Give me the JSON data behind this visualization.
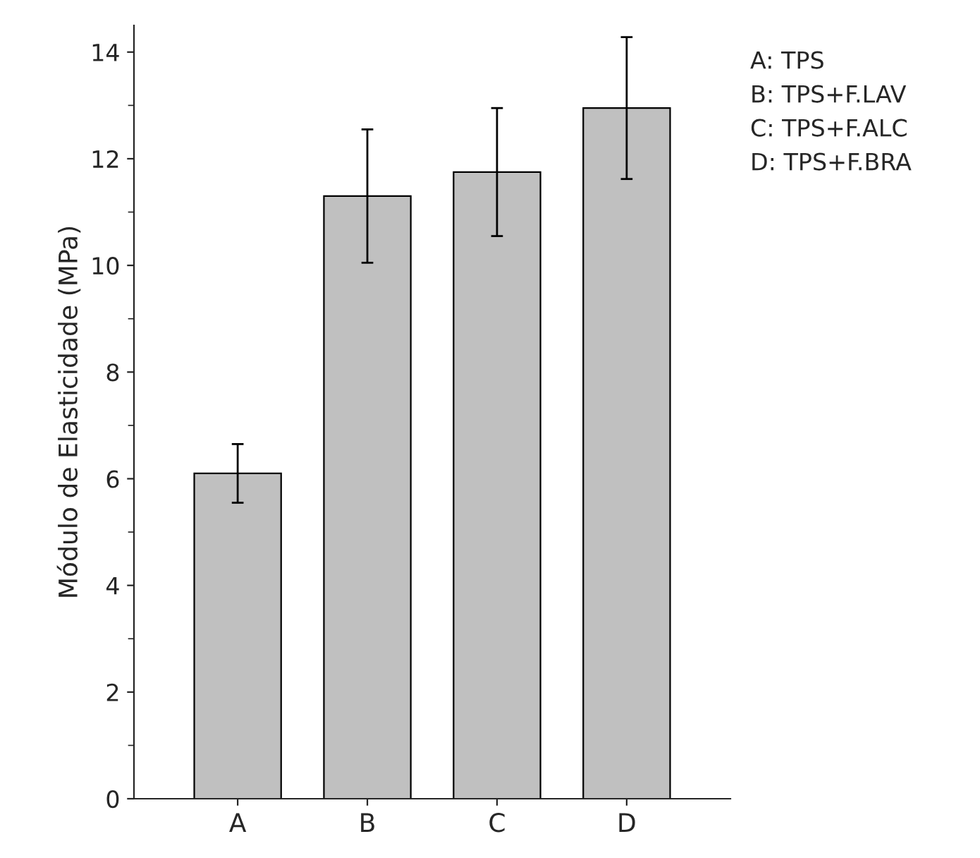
{
  "chart_data": {
    "type": "bar",
    "ylabel": "Módulo de Elasticidade (MPa)",
    "categories": [
      "A",
      "B",
      "C",
      "D"
    ],
    "values": [
      6.1,
      11.3,
      11.75,
      12.95
    ],
    "errors": [
      0.55,
      1.25,
      1.2,
      1.33
    ],
    "color": "#c0c0c0",
    "ylim": [
      0,
      14.5
    ],
    "yticks": [
      0,
      2,
      4,
      6,
      8,
      10,
      12,
      14
    ],
    "grid": false,
    "annotations": [
      "A: TPS",
      "B: TPS+F.LAV",
      "C: TPS+F.ALC",
      "D: TPS+F.BRA"
    ]
  }
}
